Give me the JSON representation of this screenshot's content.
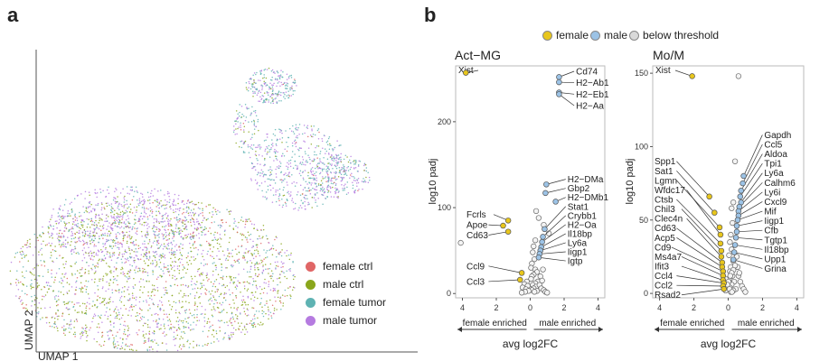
{
  "panel_labels": {
    "a": "a",
    "b": "b"
  },
  "umap": {
    "xlabel": "UMAP 1",
    "ylabel": "UMAP 2",
    "legend": [
      {
        "label": "female ctrl",
        "color": "#e06666"
      },
      {
        "label": "male ctrl",
        "color": "#8aa61c"
      },
      {
        "label": "female tumor",
        "color": "#5fb3b3"
      },
      {
        "label": "male tumor",
        "color": "#b57be0"
      }
    ]
  },
  "volcano_legend": [
    {
      "label": "female",
      "color": "#e8c61c"
    },
    {
      "label": "male",
      "color": "#9cc3e6"
    },
    {
      "label": "below threshold",
      "color": "#d9d9d9"
    }
  ],
  "chart_data": [
    {
      "type": "scatter",
      "title": "Act−MG",
      "xlabel": "avg log2FC",
      "ylabel": "log10 padj",
      "xlim": [
        -4.4,
        4.4
      ],
      "ylim": [
        -5,
        265
      ],
      "xticks": [
        4,
        2,
        0,
        2,
        4
      ],
      "xtick_values": [
        -4,
        -2,
        0,
        2,
        4
      ],
      "yticks": [
        0,
        100,
        200
      ],
      "enriched_labels": {
        "left": "female enriched",
        "right": "male enriched"
      },
      "labeled_points": [
        {
          "gene": "Xist",
          "x": -3.8,
          "y": 257,
          "group": "female"
        },
        {
          "gene": "Cd74",
          "x": 1.7,
          "y": 252,
          "group": "male"
        },
        {
          "gene": "H2−Ab1",
          "x": 1.7,
          "y": 246,
          "group": "male"
        },
        {
          "gene": "H2−Eb1",
          "x": 1.7,
          "y": 234,
          "group": "male"
        },
        {
          "gene": "H2−Aa",
          "x": 1.7,
          "y": 232,
          "group": "male"
        },
        {
          "gene": "H2−DMa",
          "x": 0.95,
          "y": 127,
          "group": "male"
        },
        {
          "gene": "Gbp2",
          "x": 0.9,
          "y": 117,
          "group": "male"
        },
        {
          "gene": "H2−DMb1",
          "x": 1.5,
          "y": 107,
          "group": "male"
        },
        {
          "gene": "Stat1",
          "x": 0.85,
          "y": 75,
          "group": "male"
        },
        {
          "gene": "Crybb1",
          "x": 0.75,
          "y": 66,
          "group": "male"
        },
        {
          "gene": "H2−Oa",
          "x": 0.7,
          "y": 60,
          "group": "male"
        },
        {
          "gene": "Il18bp",
          "x": 0.65,
          "y": 54,
          "group": "male"
        },
        {
          "gene": "Ly6a",
          "x": 0.6,
          "y": 50,
          "group": "male"
        },
        {
          "gene": "Iigp1",
          "x": 0.55,
          "y": 46,
          "group": "male"
        },
        {
          "gene": "Igtp",
          "x": 0.5,
          "y": 42,
          "group": "male"
        },
        {
          "gene": "Fcrls",
          "x": -1.3,
          "y": 85,
          "group": "female"
        },
        {
          "gene": "Apoe",
          "x": -1.6,
          "y": 79,
          "group": "female"
        },
        {
          "gene": "Cd63",
          "x": -1.3,
          "y": 72,
          "group": "female"
        },
        {
          "gene": "Ccl9",
          "x": -0.5,
          "y": 24,
          "group": "female"
        },
        {
          "gene": "Ccl3",
          "x": -0.6,
          "y": 16,
          "group": "female"
        }
      ],
      "background_points": [
        [
          -4.1,
          59
        ],
        [
          0.35,
          96
        ],
        [
          0.5,
          88
        ],
        [
          0.8,
          80
        ],
        [
          1.1,
          70
        ],
        [
          0.3,
          62
        ],
        [
          0.2,
          55
        ],
        [
          0.15,
          48
        ],
        [
          0.25,
          40
        ],
        [
          0.1,
          35
        ],
        [
          0.05,
          30
        ],
        [
          0.3,
          28
        ],
        [
          0.4,
          25
        ],
        [
          0.2,
          22
        ],
        [
          0.1,
          20
        ],
        [
          0.05,
          17
        ],
        [
          0.45,
          14
        ],
        [
          0.3,
          12
        ],
        [
          0.15,
          10
        ],
        [
          0.35,
          8
        ],
        [
          0.2,
          6
        ],
        [
          0.1,
          4
        ],
        [
          0.4,
          3
        ],
        [
          0.25,
          2
        ],
        [
          -0.2,
          14
        ],
        [
          -0.35,
          11
        ],
        [
          -0.15,
          9
        ],
        [
          -0.45,
          7
        ],
        [
          -0.25,
          5
        ],
        [
          -0.1,
          3
        ],
        [
          -0.3,
          2
        ],
        [
          -0.5,
          1
        ],
        [
          0.6,
          20
        ],
        [
          0.7,
          15
        ],
        [
          0.55,
          10
        ],
        [
          0.65,
          6
        ],
        [
          0.8,
          4
        ],
        [
          0.9,
          2
        ],
        [
          1.0,
          1
        ],
        [
          0.75,
          28
        ]
      ]
    },
    {
      "type": "scatter",
      "title": "Mo/M",
      "xlabel": "avg log2FC",
      "ylabel": "log10 padj",
      "xlim": [
        -4.4,
        4.4
      ],
      "ylim": [
        -3,
        155
      ],
      "xticks": [
        4,
        2,
        0,
        2,
        4
      ],
      "xtick_values": [
        -4,
        -2,
        0,
        2,
        4
      ],
      "yticks": [
        0,
        50,
        100,
        150
      ],
      "enriched_labels": {
        "left": "female enriched",
        "right": "male enriched"
      },
      "labeled_points": [
        {
          "gene": "Xist",
          "x": -2.1,
          "y": 148,
          "group": "female"
        },
        {
          "gene": "Spp1",
          "x": -1.1,
          "y": 66,
          "group": "female"
        },
        {
          "gene": "Sat1",
          "x": -0.8,
          "y": 55,
          "group": "female"
        },
        {
          "gene": "Lgmn",
          "x": -0.5,
          "y": 45,
          "group": "female"
        },
        {
          "gene": "Wfdc17",
          "x": -0.45,
          "y": 40,
          "group": "female"
        },
        {
          "gene": "Ctsb",
          "x": -0.45,
          "y": 34,
          "group": "female"
        },
        {
          "gene": "Chil3",
          "x": -0.4,
          "y": 29,
          "group": "female"
        },
        {
          "gene": "Clec4n",
          "x": -0.4,
          "y": 25,
          "group": "female"
        },
        {
          "gene": "Cd63",
          "x": -0.35,
          "y": 21,
          "group": "female"
        },
        {
          "gene": "Acp5",
          "x": -0.35,
          "y": 18,
          "group": "female"
        },
        {
          "gene": "Cd9",
          "x": -0.3,
          "y": 15,
          "group": "female"
        },
        {
          "gene": "Ms4a7",
          "x": -0.3,
          "y": 12,
          "group": "female"
        },
        {
          "gene": "Ifit3",
          "x": -0.3,
          "y": 9,
          "group": "female"
        },
        {
          "gene": "Ccl4",
          "x": -0.25,
          "y": 7,
          "group": "female"
        },
        {
          "gene": "Ccl2",
          "x": -0.3,
          "y": 5,
          "group": "female"
        },
        {
          "gene": "Rsad2",
          "x": -0.25,
          "y": 3,
          "group": "female"
        },
        {
          "gene": "Gapdh",
          "x": 0.9,
          "y": 80,
          "group": "male"
        },
        {
          "gene": "Ccl5",
          "x": 0.85,
          "y": 75,
          "group": "male"
        },
        {
          "gene": "Aldoa",
          "x": 0.75,
          "y": 70,
          "group": "male"
        },
        {
          "gene": "Tpi1",
          "x": 0.7,
          "y": 66,
          "group": "male"
        },
        {
          "gene": "Ly6a",
          "x": 0.75,
          "y": 62,
          "group": "male"
        },
        {
          "gene": "Calhm6",
          "x": 0.65,
          "y": 59,
          "group": "male"
        },
        {
          "gene": "Ly6i",
          "x": 0.6,
          "y": 56,
          "group": "male"
        },
        {
          "gene": "Cxcl9",
          "x": 0.6,
          "y": 53,
          "group": "male"
        },
        {
          "gene": "Mif",
          "x": 0.55,
          "y": 50,
          "group": "male"
        },
        {
          "gene": "Iigp1",
          "x": 0.5,
          "y": 46,
          "group": "male"
        },
        {
          "gene": "Cfb",
          "x": 0.5,
          "y": 42,
          "group": "male"
        },
        {
          "gene": "Tgtp1",
          "x": 0.45,
          "y": 38,
          "group": "male"
        },
        {
          "gene": "Il18bp",
          "x": 0.4,
          "y": 33,
          "group": "male"
        },
        {
          "gene": "Upp1",
          "x": 0.35,
          "y": 28,
          "group": "male"
        },
        {
          "gene": "Grina",
          "x": 0.3,
          "y": 23,
          "group": "male"
        }
      ],
      "background_points": [
        [
          0.6,
          148
        ],
        [
          0.4,
          90
        ],
        [
          0.3,
          62
        ],
        [
          0.2,
          58
        ],
        [
          0.25,
          48
        ],
        [
          0.15,
          40
        ],
        [
          0.1,
          35
        ],
        [
          0.2,
          30
        ],
        [
          0.05,
          26
        ],
        [
          0.3,
          22
        ],
        [
          0.15,
          18
        ],
        [
          0.1,
          15
        ],
        [
          0.25,
          12
        ],
        [
          0.05,
          10
        ],
        [
          0.35,
          8
        ],
        [
          0.2,
          6
        ],
        [
          0.1,
          4
        ],
        [
          0.45,
          3
        ],
        [
          0.3,
          2
        ],
        [
          0.15,
          1
        ],
        [
          -0.15,
          10
        ],
        [
          -0.2,
          7
        ],
        [
          -0.1,
          4
        ],
        [
          -0.15,
          2
        ],
        [
          0.6,
          12
        ],
        [
          0.7,
          8
        ],
        [
          0.8,
          5
        ],
        [
          0.9,
          3
        ],
        [
          1.0,
          1
        ],
        [
          0.55,
          18
        ],
        [
          0.65,
          14
        ],
        [
          0.5,
          25
        ],
        [
          0.4,
          19
        ],
        [
          0.3,
          16
        ],
        [
          0.2,
          14
        ],
        [
          0.12,
          12
        ],
        [
          0.02,
          8
        ],
        [
          -0.05,
          6
        ],
        [
          0.08,
          3
        ],
        [
          0.22,
          1
        ]
      ]
    }
  ]
}
